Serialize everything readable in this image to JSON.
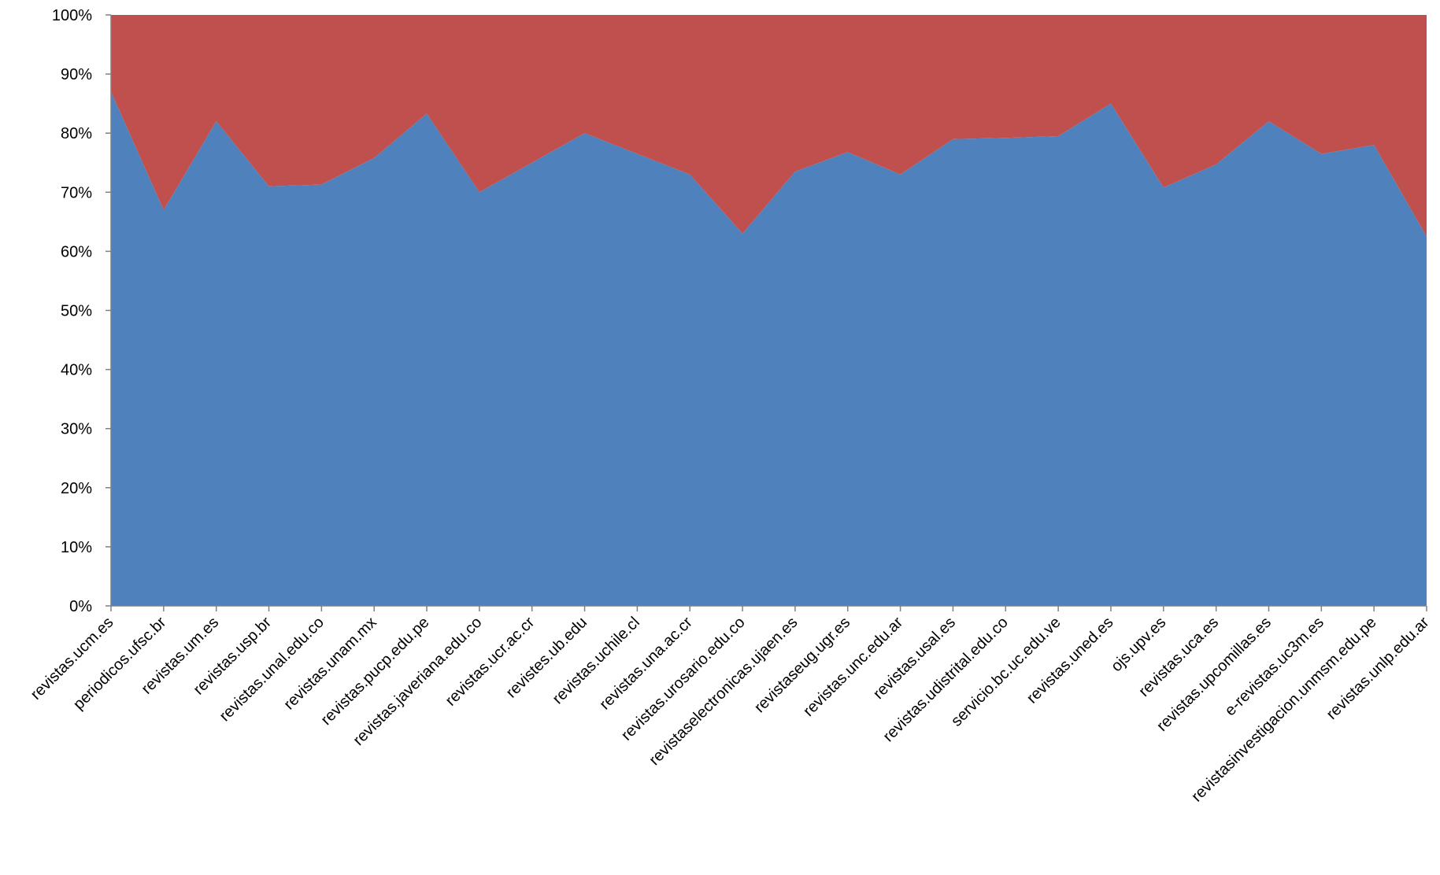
{
  "chart_data": {
    "type": "area",
    "stacked": "percent",
    "ylim": [
      0,
      100
    ],
    "y_ticks": [
      "0%",
      "10%",
      "20%",
      "30%",
      "40%",
      "50%",
      "60%",
      "70%",
      "80%",
      "90%",
      "100%"
    ],
    "grid": false,
    "legend": "none",
    "categories": [
      "revistas.ucm.es",
      "periodicos.ufsc.br",
      "revistas.um.es",
      "revistas.usp.br",
      "revistas.unal.edu.co",
      "revistas.unam.mx",
      "revistas.pucp.edu.pe",
      "revistas.javeriana.edu.co",
      "revistas.ucr.ac.cr",
      "revistes.ub.edu",
      "revistas.uchile.cl",
      "revistas.una.ac.cr",
      "revistas.urosario.edu.co",
      "revistaselectronicas.ujaen.es",
      "revistaseug.ugr.es",
      "revistas.unc.edu.ar",
      "revistas.usal.es",
      "revistas.udistrital.edu.co",
      "servicio.bc.uc.edu.ve",
      "revistas.uned.es",
      "ojs.upv.es",
      "revistas.uca.es",
      "revistas.upcomillas.es",
      "e-revistas.uc3m.es",
      "revistasinvestigacion.unmsm.edu.pe",
      "revistas.unlp.edu.ar"
    ],
    "series": [
      {
        "color": "#4f81bd",
        "values": [
          87,
          67,
          82,
          71,
          71.3,
          75.8,
          83.3,
          70,
          75,
          80,
          76.5,
          73,
          63,
          73.5,
          76.8,
          73,
          79,
          79.2,
          79.5,
          85,
          70.8,
          74.7,
          82,
          76.5,
          78,
          62.5
        ]
      },
      {
        "color": "#c0504d",
        "values": [
          13,
          33,
          18,
          29,
          28.7,
          24.2,
          16.7,
          30,
          25,
          20,
          23.5,
          27,
          37,
          26.5,
          23.2,
          27,
          21,
          20.8,
          20.5,
          15,
          29.2,
          25.3,
          18,
          23.5,
          22,
          37.5
        ]
      }
    ]
  }
}
